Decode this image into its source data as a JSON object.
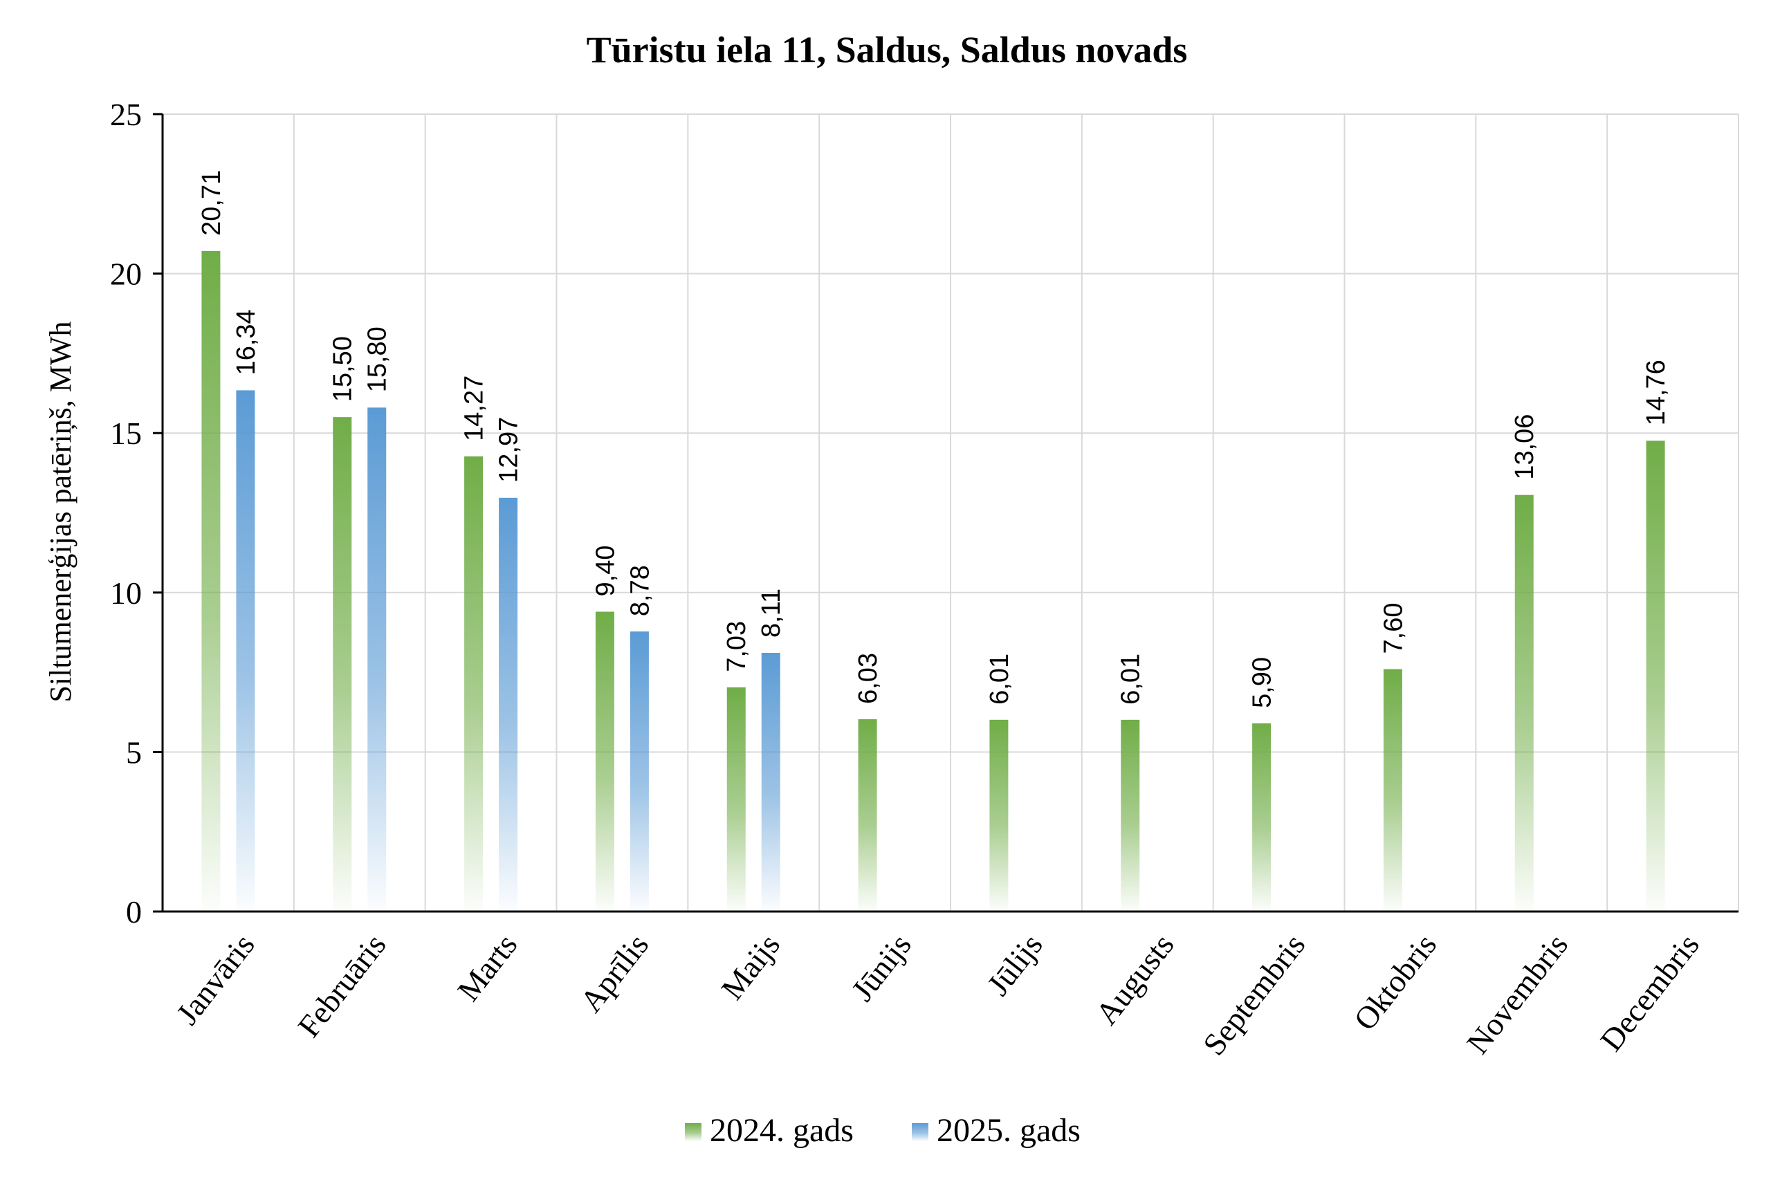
{
  "chart_data": {
    "type": "bar",
    "title": "Tūristu iela 11, Saldus, Saldus novads",
    "ylabel": "Siltumenerģijas patēriņš, MWh",
    "xlabel": "",
    "ylim": [
      0,
      25
    ],
    "yticks": [
      0,
      5,
      10,
      15,
      20,
      25
    ],
    "grid": true,
    "legend_position": "bottom",
    "categories": [
      "Janvāris",
      "Februāris",
      "Marts",
      "Aprīlis",
      "Maijs",
      "Jūnijs",
      "Jūlijs",
      "Augusts",
      "Septembris",
      "Oktobris",
      "Novembris",
      "Decembris"
    ],
    "series": [
      {
        "name": "2024. gads",
        "color": "#70ad47",
        "values": [
          20.71,
          15.5,
          14.27,
          9.4,
          7.03,
          6.03,
          6.01,
          6.01,
          5.9,
          7.6,
          13.06,
          14.76
        ],
        "labels": [
          "20,71",
          "15,50",
          "14,27",
          "9,40",
          "7,03",
          "6,03",
          "6,01",
          "6,01",
          "5,90",
          "7,60",
          "13,06",
          "14,76"
        ]
      },
      {
        "name": "2025. gads",
        "color": "#5b9bd5",
        "values": [
          16.34,
          15.8,
          12.97,
          8.78,
          8.11,
          null,
          null,
          null,
          null,
          null,
          null,
          null
        ],
        "labels": [
          "16,34",
          "15,80",
          "12,97",
          "8,78",
          "8,11",
          "",
          "",
          "",
          "",
          "",
          "",
          ""
        ]
      }
    ]
  }
}
